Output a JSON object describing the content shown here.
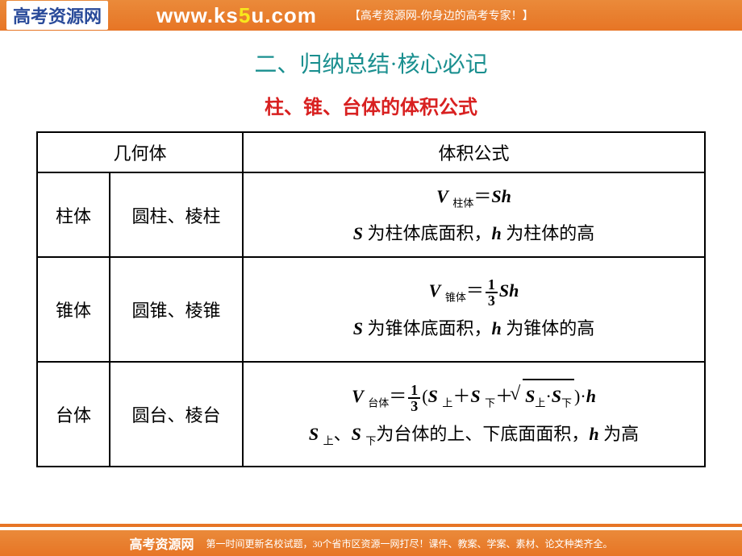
{
  "header": {
    "logo_text": "高考资源网",
    "url_prefix": "www.ks",
    "url_highlight": "5",
    "url_suffix": "u.com",
    "tagline": "【高考资源网-你身边的高考专家！】"
  },
  "content": {
    "title_main": "二、归纳总结·核心必记",
    "title_sub": "柱、锥、台体的体积公式",
    "table": {
      "header_col1": "几何体",
      "header_col2": "体积公式",
      "rows": [
        {
          "type": "柱体",
          "shapes": "圆柱、棱柱",
          "formula_sub": "柱体",
          "formula_rhs": "Sh",
          "desc_prefix": "S",
          "desc_mid1": " 为柱体底面积，",
          "desc_var2": "h",
          "desc_suffix": " 为柱体的高"
        },
        {
          "type": "锥体",
          "shapes": "圆锥、棱锥",
          "formula_sub": "锥体",
          "frac_num": "1",
          "frac_den": "3",
          "formula_rhs": "Sh",
          "desc_prefix": "S",
          "desc_mid1": " 为锥体底面积，",
          "desc_var2": "h",
          "desc_suffix": " 为锥体的高"
        },
        {
          "type": "台体",
          "shapes": "圆台、棱台",
          "formula_sub": "台体",
          "frac_num": "1",
          "frac_den": "3",
          "s_upper": "上",
          "s_lower": "下",
          "desc": "为台体的上、下底面面积，",
          "desc_var2": "h",
          "desc_suffix": " 为高"
        }
      ]
    }
  },
  "footer": {
    "logo": "高考资源网",
    "text": "第一时间更新名校试题，30个省市区资源一网打尽！课件、教案、学案、素材、论文种类齐全。"
  },
  "colors": {
    "header_bg": "#e77525",
    "title_main": "#1a8f8f",
    "title_sub": "#d82020",
    "border": "#000000",
    "bg": "#ffffff"
  }
}
